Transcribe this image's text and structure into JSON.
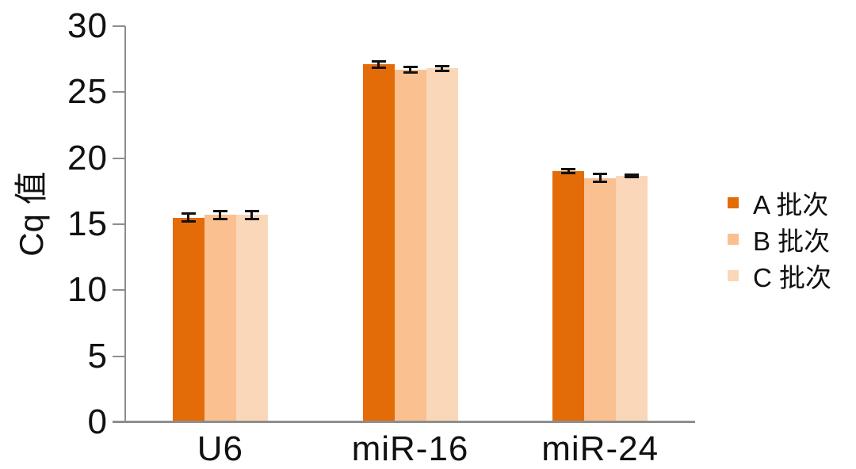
{
  "chart_data": {
    "type": "bar",
    "title": "",
    "ylabel": "Cq 值",
    "xlabel": "",
    "ylim": [
      0,
      30
    ],
    "yticks": [
      0,
      5,
      10,
      15,
      20,
      25,
      30
    ],
    "grid": false,
    "legend_position": "right",
    "categories": [
      "U6",
      "miR-16",
      "miR-24"
    ],
    "series": [
      {
        "name": "A 批次",
        "color": "#e36c09",
        "values": [
          15.5,
          27.1,
          19.0
        ],
        "errors": [
          0.3,
          0.25,
          0.15
        ]
      },
      {
        "name": "B 批次",
        "color": "#fac090",
        "values": [
          15.7,
          26.7,
          18.5
        ],
        "errors": [
          0.3,
          0.2,
          0.3
        ]
      },
      {
        "name": "C 批次",
        "color": "#fad7b8",
        "values": [
          15.7,
          26.8,
          18.65
        ],
        "errors": [
          0.3,
          0.2,
          0.08
        ]
      }
    ],
    "error_bars": true,
    "colors": {
      "axis": "#8e8e8e",
      "text": "#111111",
      "error_bar": "#111111",
      "background": "#ffffff"
    }
  }
}
